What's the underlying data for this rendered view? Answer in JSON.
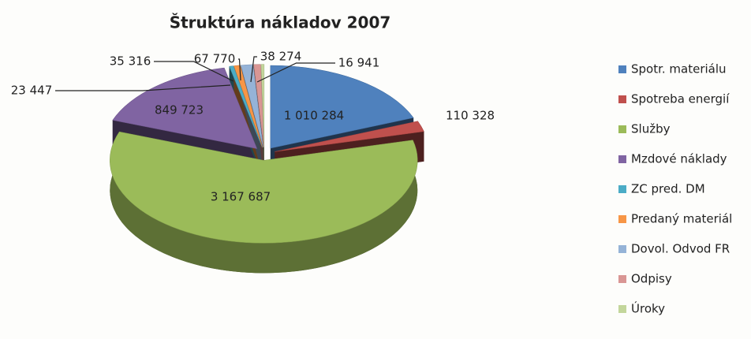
{
  "chart_data": {
    "type": "pie",
    "title": "Štruktúra nákladov 2007",
    "categories": [
      "Spotr. materiálu",
      "Spotreba energií",
      "Služby",
      "Mzdové náklady",
      "ZC pred. DM",
      "Predaný materiál",
      "Dovol. Odvod FR",
      "Odpisy",
      "Úroky"
    ],
    "values": [
      1010284,
      110328,
      3167687,
      849723,
      23447,
      35316,
      67770,
      38274,
      16941
    ],
    "value_labels": [
      "1 010 284",
      "110 328",
      "3 167 687",
      "849 723",
      "23 447",
      "35 316",
      "67 770",
      "38 274",
      "16 941"
    ],
    "colors": [
      "#4f81bd",
      "#c0504d",
      "#9bbb59",
      "#8064a2",
      "#4bacc6",
      "#f79646",
      "#95b3d7",
      "#d99694",
      "#c3d69b"
    ],
    "legend": "right"
  }
}
